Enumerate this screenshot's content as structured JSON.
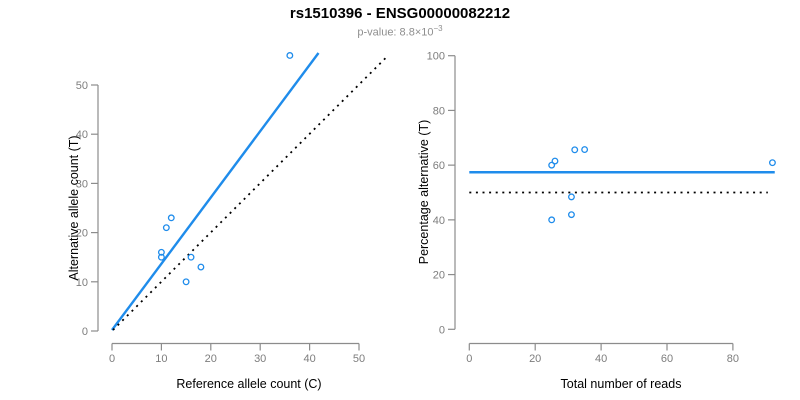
{
  "header": {
    "title": "rs1510396 - ENSG00000082212",
    "subtitle_prefix": "p-value: 8.8×10",
    "subtitle_exponent": "−3"
  },
  "colors": {
    "accent": "#1f8ceb",
    "line_black": "#000000",
    "axis": "#8c8c8c",
    "tick_text": "#7d7d7d",
    "axis_title": "#000000",
    "title_text": "#000000",
    "subtitle_text": "#8f8f8f",
    "background": "#ffffff"
  },
  "chart_data": [
    {
      "type": "scatter",
      "name": "allele-count-scatter",
      "xlabel": "Reference allele count (C)",
      "ylabel": "Alternative allele count (T)",
      "xlim": [
        0,
        50
      ],
      "ylim": [
        0,
        50
      ],
      "x_ticks": [
        0,
        10,
        20,
        30,
        40,
        50
      ],
      "y_ticks": [
        0,
        10,
        20,
        30,
        40,
        50
      ],
      "grid": false,
      "legend": "none",
      "points": [
        [
          36,
          56
        ],
        [
          12,
          23
        ],
        [
          11,
          21
        ],
        [
          10,
          16
        ],
        [
          10,
          15
        ],
        [
          16,
          15
        ],
        [
          18,
          13
        ],
        [
          15,
          10
        ]
      ],
      "lines": [
        {
          "name": "fitted-ratio-line",
          "style": "solid",
          "color": "#1f8ceb",
          "from": [
            0,
            0.2
          ],
          "to": [
            41.8,
            56.5
          ]
        },
        {
          "name": "identity-line",
          "style": "dotted",
          "color": "#000000",
          "from": [
            0.2,
            0.2
          ],
          "to": [
            55.9,
            56.0
          ]
        }
      ]
    },
    {
      "type": "scatter",
      "name": "percentage-vs-reads-scatter",
      "xlabel": "Total number of reads",
      "ylabel": "Percentage alternative (T)",
      "xlim": [
        0,
        80
      ],
      "ylim": [
        0,
        100
      ],
      "x_ticks": [
        0,
        20,
        40,
        60,
        80
      ],
      "y_ticks": [
        0,
        20,
        40,
        60,
        80,
        100
      ],
      "grid": false,
      "legend": "none",
      "points": [
        [
          32,
          65.6
        ],
        [
          35,
          65.7
        ],
        [
          26,
          61.5
        ],
        [
          25,
          60.0
        ],
        [
          92,
          60.9
        ],
        [
          31,
          48.4
        ],
        [
          31,
          41.9
        ],
        [
          25,
          40.0
        ]
      ],
      "lines": [
        {
          "name": "mean-percentage-line",
          "style": "solid",
          "color": "#1f8ceb",
          "from": [
            0,
            57.4
          ],
          "to": [
            92.7,
            57.4
          ]
        },
        {
          "name": "fifty-percent-line",
          "style": "dotted",
          "color": "#000000",
          "from": [
            0,
            50.0
          ],
          "to": [
            90.6,
            50.0
          ]
        }
      ]
    }
  ]
}
